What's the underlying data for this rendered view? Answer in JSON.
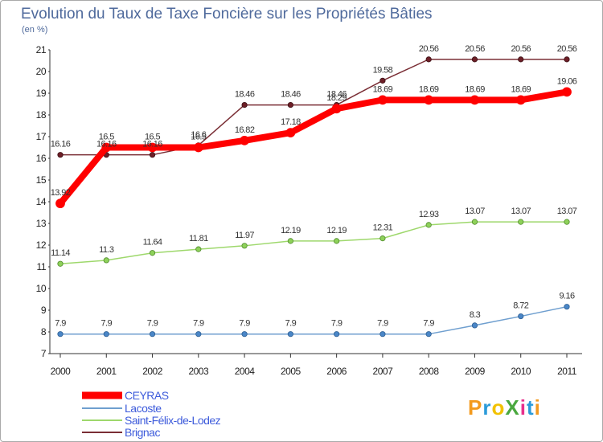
{
  "chart_data": {
    "type": "line",
    "title": "Evolution du Taux de Taxe Foncière sur les Propriétés Bâties",
    "subtitle": "(en %)",
    "xlabel": "",
    "ylabel": "",
    "x": [
      "2000",
      "2001",
      "2002",
      "2003",
      "2004",
      "2005",
      "2006",
      "2007",
      "2008",
      "2009",
      "2010",
      "2011"
    ],
    "ylim": [
      7,
      21
    ],
    "yticks": [
      7,
      8,
      9,
      10,
      11,
      12,
      13,
      14,
      15,
      16,
      17,
      18,
      19,
      20,
      21
    ],
    "grid": false,
    "legend_position": "bottom-left",
    "series": [
      {
        "name": "CEYRAS",
        "color": "#ff0000",
        "values": [
          13.92,
          16.5,
          16.5,
          16.5,
          16.82,
          17.18,
          18.29,
          18.69,
          18.69,
          18.69,
          18.69,
          19.06
        ],
        "labels": [
          "13.92",
          "16.5",
          "16.5",
          "16.5",
          "16.82",
          "17.18",
          "18.29",
          "18.69",
          "18.69",
          "18.69",
          "18.69",
          "19.06"
        ]
      },
      {
        "name": "Lacoste",
        "color": "#6f9fcf",
        "values": [
          7.9,
          7.9,
          7.9,
          7.9,
          7.9,
          7.9,
          7.9,
          7.9,
          7.9,
          8.3,
          8.72,
          9.16
        ],
        "labels": [
          "7.9",
          "7.9",
          "7.9",
          "7.9",
          "7.9",
          "7.9",
          "7.9",
          "7.9",
          "7.9",
          "8.3",
          "8.72",
          "9.16"
        ]
      },
      {
        "name": "Saint-Félix-de-Lodez",
        "color": "#9ed86c",
        "values": [
          11.14,
          11.3,
          11.64,
          11.81,
          11.97,
          12.19,
          12.19,
          12.31,
          12.93,
          13.07,
          13.07,
          13.07
        ],
        "labels": [
          "11.14",
          "11.3",
          "11.64",
          "11.81",
          "11.97",
          "12.19",
          "12.19",
          "12.31",
          "12.93",
          "13.07",
          "13.07",
          "13.07"
        ]
      },
      {
        "name": "Brignac",
        "color": "#7a2e35",
        "values": [
          16.16,
          16.16,
          16.16,
          16.6,
          18.46,
          18.46,
          18.46,
          19.58,
          20.56,
          20.56,
          20.56,
          20.56
        ],
        "labels": [
          "16.16",
          "16.16",
          "16.16",
          "16.6",
          "18.46",
          "18.46",
          "18.46",
          "19.58",
          "20.56",
          "20.56",
          "20.56",
          "20.56"
        ]
      }
    ]
  },
  "logo": {
    "text": "ProXiti"
  }
}
